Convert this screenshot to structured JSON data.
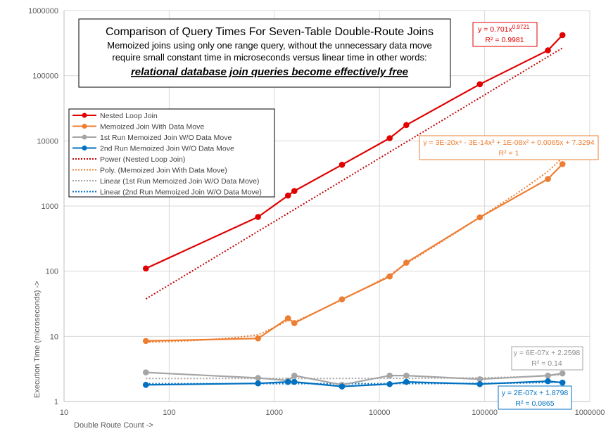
{
  "chart_data": {
    "type": "line",
    "title": "Comparison of Query Times For Seven-Table Double-Route Joins",
    "subtitle_lines": [
      "Memoized joins using only one range query, without the unnecessary data move",
      "require small constant time in microseconds versus linear time in other words:"
    ],
    "emphasis": "relational database join queries become effectively free",
    "xlabel": "Double Route Count ->",
    "ylabel": "Execution Time (microseconds) ->",
    "xscale": "log",
    "yscale": "log",
    "xlim": [
      10,
      1000000
    ],
    "ylim": [
      1,
      1000000
    ],
    "x_tick_labels": [
      "10",
      "100",
      "1000",
      "10000",
      "100000",
      "1000000"
    ],
    "y_tick_labels": [
      "1",
      "10",
      "100",
      "1000",
      "10000",
      "100000",
      "1000000"
    ],
    "grid": "major both axes",
    "legend_position": "upper-left",
    "x": [
      60,
      700,
      1350,
      1550,
      4400,
      12500,
      18000,
      90000,
      400000,
      550000
    ],
    "series": [
      {
        "name": "Nested Loop Join",
        "color": "#e00000",
        "style": "solid-markers",
        "values": [
          110,
          680,
          1450,
          1700,
          4300,
          11000,
          17500,
          74000,
          245000,
          420000
        ]
      },
      {
        "name": "Memoized Join With Data Move",
        "color": "#ed7d31",
        "style": "solid-markers",
        "values": [
          8.5,
          9.3,
          19,
          16,
          37,
          83,
          135,
          670,
          2600,
          4400
        ]
      },
      {
        "name": "1st Run Memoized Join W/O Data Move",
        "color": "#a5a5a5",
        "style": "solid-markers",
        "values": [
          2.8,
          2.3,
          2.1,
          2.5,
          1.8,
          2.5,
          2.5,
          2.2,
          2.5,
          2.7
        ]
      },
      {
        "name": "2nd Run Memoized Join W/O Data Move",
        "color": "#0070c0",
        "style": "solid-markers",
        "values": [
          1.8,
          1.9,
          2.0,
          2.0,
          1.7,
          1.85,
          2.0,
          1.85,
          2.05,
          1.95
        ]
      }
    ],
    "trendlines": [
      {
        "name": "Power (Nested Loop Join)",
        "color": "#c00000",
        "kind": "power",
        "a": 0.701,
        "b": 0.9721,
        "equation_label": "y = 0.701x",
        "equation_exponent": "0.9721",
        "r2_label": "R² = 0.9981"
      },
      {
        "name": "Poly. (Memoized Join With Data Move)",
        "color": "#ed7d31",
        "kind": "poly",
        "coefficients": [
          7.3294,
          0.0065,
          1e-08,
          -3e-14,
          3e-20
        ],
        "equation_label": "y = 3E-20x⁴ - 3E-14x³ + 1E-08x² + 0.0065x + 7.3294",
        "r2_label": "R² = 1"
      },
      {
        "name": "Linear (1st Run Memoized Join W/O Data Move)",
        "color": "#a5a5a5",
        "kind": "linear",
        "slope": 6e-07,
        "intercept": 2.2598,
        "equation_label": "y = 6E-07x + 2.2598",
        "r2_label": "R² = 0.14"
      },
      {
        "name": "Linear (2nd Run Memoized Join W/O Data Move)",
        "color": "#0070c0",
        "kind": "linear",
        "slope": 2e-07,
        "intercept": 1.8798,
        "equation_label": "y = 2E-07x + 1.8798",
        "r2_label": "R² = 0.0865"
      }
    ]
  }
}
